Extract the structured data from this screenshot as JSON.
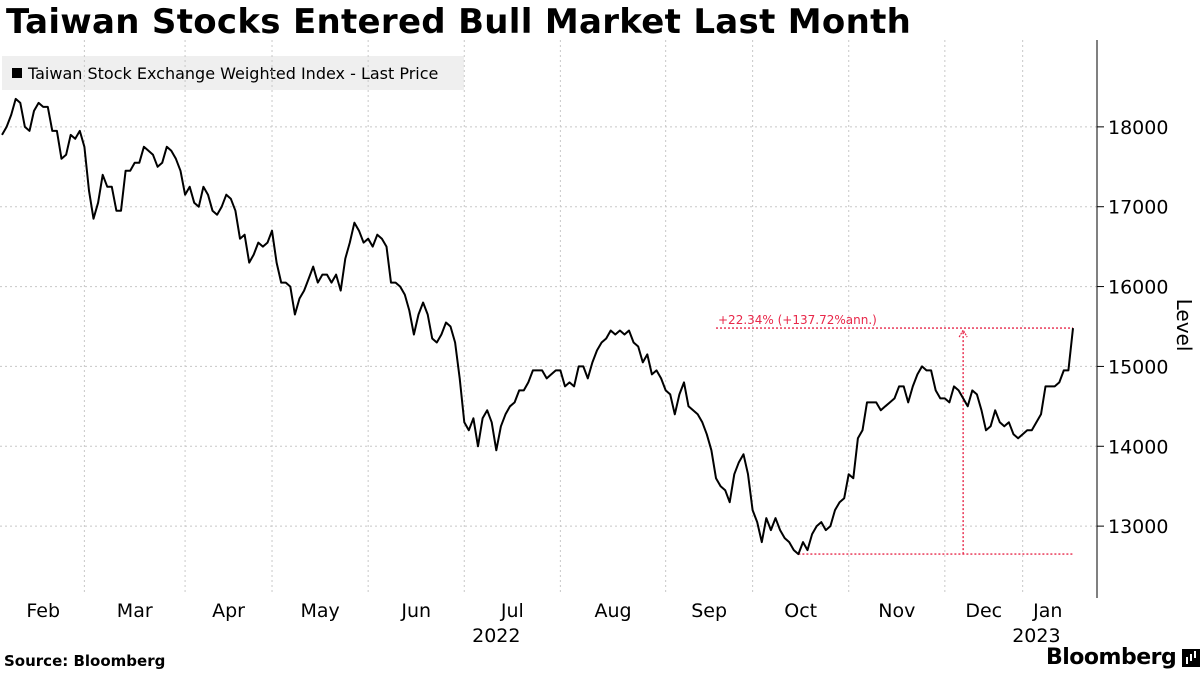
{
  "chart_data": {
    "type": "line",
    "title": "Taiwan Stocks Entered Bull Market Last Month",
    "legend": "Taiwan Stock Exchange Weighted Index - Last Price",
    "ylabel": "Level",
    "ylim": [
      12200,
      18900
    ],
    "yticks": [
      13000,
      14000,
      15000,
      16000,
      17000,
      18000
    ],
    "xticks": [
      {
        "label": "Feb",
        "index": 0
      },
      {
        "label": "Mar",
        "index": 18
      },
      {
        "label": "Apr",
        "index": 40
      },
      {
        "label": "May",
        "index": 59
      },
      {
        "label": "Jun",
        "index": 80
      },
      {
        "label": "Jul",
        "index": 101
      },
      {
        "label": "Aug",
        "index": 122
      },
      {
        "label": "Sep",
        "index": 145
      },
      {
        "label": "Oct",
        "index": 164
      },
      {
        "label": "Nov",
        "index": 185
      },
      {
        "label": "Dec",
        "index": 206
      },
      {
        "label": "Jan",
        "index": 223
      }
    ],
    "year_labels": [
      {
        "label": "2022",
        "index": 108
      },
      {
        "label": "2023",
        "index": 226
      }
    ],
    "series": [
      {
        "name": "Taiwan Stock Exchange Weighted Index - Last Price",
        "values": [
          17900,
          18000,
          18150,
          18350,
          18300,
          18000,
          17950,
          18200,
          18300,
          18250,
          18250,
          17950,
          17950,
          17600,
          17650,
          17900,
          17850,
          17950,
          17750,
          17200,
          16850,
          17050,
          17400,
          17250,
          17250,
          16950,
          16950,
          17450,
          17450,
          17550,
          17550,
          17750,
          17700,
          17650,
          17500,
          17550,
          17750,
          17700,
          17600,
          17450,
          17150,
          17250,
          17050,
          17000,
          17250,
          17150,
          16950,
          16900,
          17000,
          17150,
          17100,
          16950,
          16600,
          16650,
          16300,
          16400,
          16550,
          16500,
          16550,
          16700,
          16300,
          16050,
          16050,
          16000,
          15650,
          15850,
          15950,
          16100,
          16250,
          16050,
          16150,
          16150,
          16050,
          16150,
          15950,
          16350,
          16550,
          16800,
          16700,
          16550,
          16600,
          16500,
          16650,
          16600,
          16500,
          16050,
          16050,
          16000,
          15900,
          15700,
          15400,
          15650,
          15800,
          15650,
          15350,
          15300,
          15400,
          15550,
          15500,
          15300,
          14850,
          14300,
          14200,
          14350,
          14000,
          14350,
          14450,
          14300,
          13950,
          14250,
          14400,
          14500,
          14550,
          14700,
          14700,
          14800,
          14950,
          14950,
          14950,
          14850,
          14900,
          14950,
          14950,
          14750,
          14800,
          14750,
          15000,
          15000,
          14850,
          15050,
          15200,
          15300,
          15350,
          15450,
          15400,
          15450,
          15400,
          15450,
          15300,
          15250,
          15050,
          15150,
          14900,
          14950,
          14850,
          14700,
          14650,
          14400,
          14650,
          14800,
          14500,
          14450,
          14400,
          14300,
          14150,
          13950,
          13600,
          13500,
          13450,
          13300,
          13650,
          13800,
          13900,
          13650,
          13200,
          13050,
          12800,
          13100,
          12950,
          13100,
          12950,
          12850,
          12800,
          12700,
          12650,
          12800,
          12700,
          12900,
          13000,
          13050,
          12950,
          13000,
          13200,
          13300,
          13350,
          13650,
          13600,
          14100,
          14200,
          14550,
          14550,
          14550,
          14450,
          14500,
          14550,
          14600,
          14750,
          14750,
          14550,
          14750,
          14900,
          15000,
          14950,
          14950,
          14700,
          14600,
          14600,
          14550,
          14750,
          14700,
          14600,
          14500,
          14700,
          14650,
          14450,
          14200,
          14250,
          14450,
          14300,
          14250,
          14300,
          14150,
          14100,
          14150,
          14200,
          14200,
          14300,
          14400,
          14750,
          14750,
          14750,
          14800,
          14950,
          14950,
          15480
        ]
      }
    ],
    "annotation": {
      "text": "+22.34% (+137.72%ann.)",
      "low": {
        "index": 174,
        "value": 12650
      },
      "high_value": 15480,
      "marker_index": 210,
      "color": "#e8284a"
    }
  },
  "footer": {
    "source": "Source: Bloomberg",
    "brand": "Bloomberg"
  }
}
